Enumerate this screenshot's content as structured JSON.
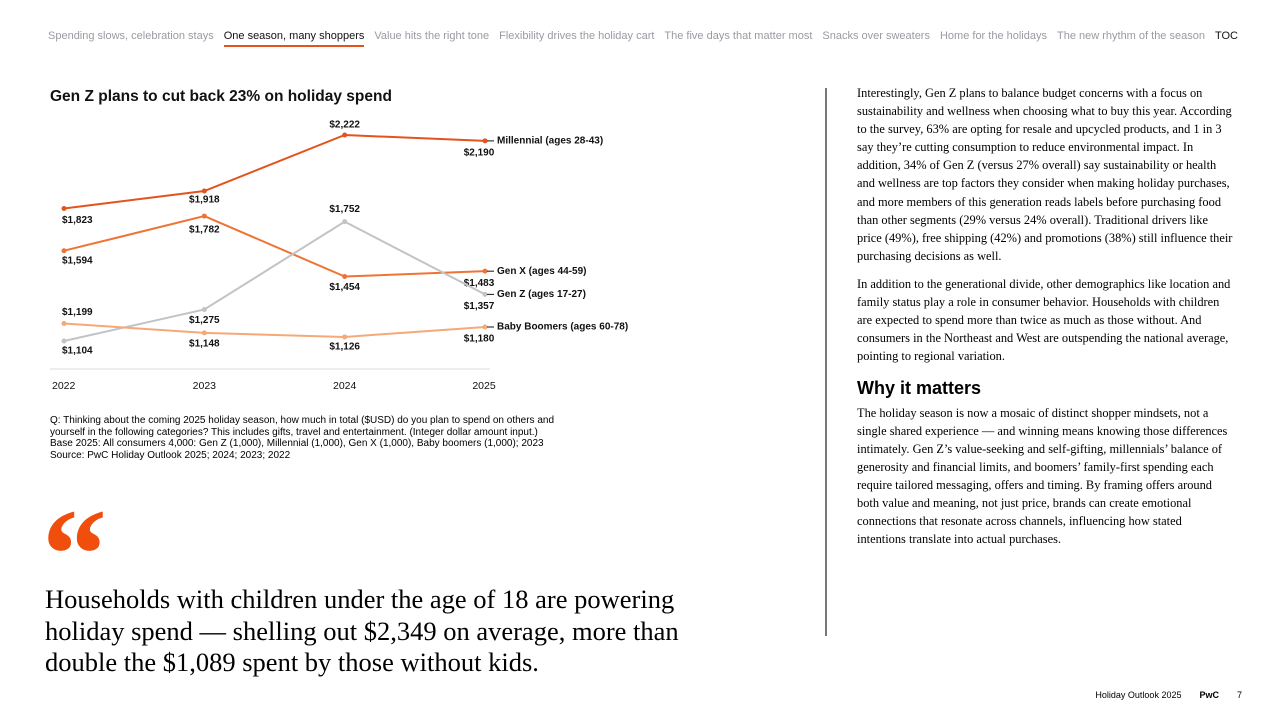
{
  "nav": {
    "items": [
      "Spending slows, celebration stays",
      "One season, many shoppers",
      "Value hits the right tone",
      "Flexibility drives the holiday cart",
      "The five days that matter most",
      "Snacks over sweaters",
      "Home for the holidays",
      "The new rhythm of the season"
    ],
    "active": 1,
    "toc": "TOC"
  },
  "chart_data": {
    "type": "line",
    "title": "Gen Z plans to cut back 23% on holiday spend",
    "categories": [
      "2022",
      "2023",
      "2024",
      "2025"
    ],
    "series": [
      {
        "name": "Millennial (ages 28-43)",
        "color": "#e4531c",
        "values": [
          1823,
          1918,
          2222,
          2190
        ],
        "value_labels": [
          "$1,823",
          "$1,918",
          "$2,222",
          "$2,190"
        ]
      },
      {
        "name": "Gen X (ages 44-59)",
        "color": "#ee7434",
        "values": [
          1594,
          1782,
          1454,
          1483
        ],
        "value_labels": [
          "$1,594",
          "$1,782",
          "$1,454",
          "$1,483"
        ]
      },
      {
        "name": "Gen Z (ages 17-27)",
        "color": "#c3c3c6",
        "values": [
          1104,
          1275,
          1752,
          1357
        ],
        "value_labels": [
          "$1,104",
          "$1,275",
          "$1,752",
          "$1,357"
        ]
      },
      {
        "name": "Baby Boomers (ages 60-78)",
        "color": "#f6a977",
        "values": [
          1199,
          1148,
          1126,
          1180
        ],
        "value_labels": [
          "$1,199",
          "$1,148",
          "$1,126",
          "$1,180"
        ]
      }
    ],
    "notes": [
      "Q: Thinking about the coming 2025 holiday season, how much in total ($USD) do you plan to spend on others and",
      "yourself in the following categories? This includes gifts, travel and entertainment. (Integer dollar amount input.)",
      "Base 2025: All consumers 4,000: Gen Z (1,000), Millennial (1,000), Gen X (1,000), Baby boomers (1,000); 2023",
      "Source: PwC Holiday Outlook 2025; 2024; 2023; 2022"
    ]
  },
  "quote": {
    "mark": "“",
    "text": "Households with children under the age of 18 are powering holiday spend — shelling out $2,349 on average, more than double the $1,089 spent by those without kids."
  },
  "body": {
    "paragraphs": [
      "Interestingly, Gen Z plans to balance budget concerns with a focus on sustainability and wellness when choosing what to buy this year. According to the survey, 63% are opting for resale and upcycled products, and 1 in 3 say they’re cutting consumption to reduce environmental impact. In addition, 34% of Gen Z (versus 27% overall) say sustainability or health and wellness are top factors they consider when making holiday purchases, and more members of this generation reads labels before purchasing food than other segments (29% versus 24% overall). Traditional drivers like price (49%), free shipping (42%) and promotions (38%) still influence their purchasing decisions as well.",
      "In addition to the generational divide, other demographics like location and family status play a role in consumer behavior. Households with children are expected to spend more than twice as much as those without. And consumers in the Northeast and West are outspending the national average, pointing to regional variation."
    ],
    "heading": "Why it matters",
    "closing": "The holiday season is now a mosaic of distinct shopper mindsets, not a single shared experience — and winning means knowing those differences intimately. Gen Z’s value-seeking and self-gifting, millennials’ balance of generosity and financial limits, and boomers’ family-first spending each require tailored messaging, offers and timing. By framing offers around both value and meaning, not just price, brands can create emotional connections that resonate across channels, influencing how stated intentions translate into actual purchases."
  },
  "footer": {
    "report": "Holiday Outlook 2025",
    "brand": "PwC",
    "page": "7"
  }
}
